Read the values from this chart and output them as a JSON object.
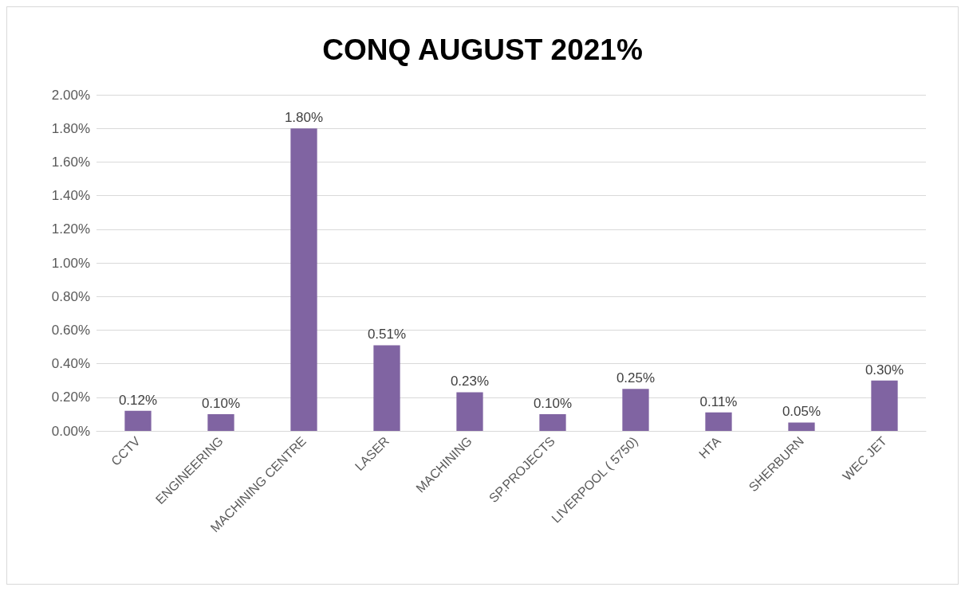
{
  "chart_data": {
    "type": "bar",
    "title": "CONQ AUGUST 2021%",
    "categories": [
      "CCTV",
      "ENGINEERING",
      "MACHINING CENTRE",
      "LASER",
      "MACHINING",
      "SP.PROJECTS",
      "LIVERPOOL ( 5750)",
      "HTA",
      "SHERBURN",
      "WEC JET"
    ],
    "values": [
      0.12,
      0.1,
      1.8,
      0.51,
      0.23,
      0.1,
      0.25,
      0.11,
      0.05,
      0.3
    ],
    "value_labels": [
      "0.12%",
      "0.10%",
      "1.80%",
      "0.51%",
      "0.23%",
      "0.10%",
      "0.25%",
      "0.11%",
      "0.05%",
      "0.30%"
    ],
    "color": "#8064a2",
    "ylim": [
      0,
      2
    ],
    "yticks": [
      {
        "value": 0,
        "label": "0.00%"
      },
      {
        "value": 0.2,
        "label": "0.20%"
      },
      {
        "value": 0.4,
        "label": "0.40%"
      },
      {
        "value": 0.6,
        "label": "0.60%"
      },
      {
        "value": 0.8,
        "label": "0.80%"
      },
      {
        "value": 1,
        "label": "1.00%"
      },
      {
        "value": 1.2,
        "label": "1.20%"
      },
      {
        "value": 1.4,
        "label": "1.40%"
      },
      {
        "value": 1.6,
        "label": "1.60%"
      },
      {
        "value": 1.8,
        "label": "1.80%"
      },
      {
        "value": 2,
        "label": "2.00%"
      }
    ],
    "grid": "y"
  }
}
